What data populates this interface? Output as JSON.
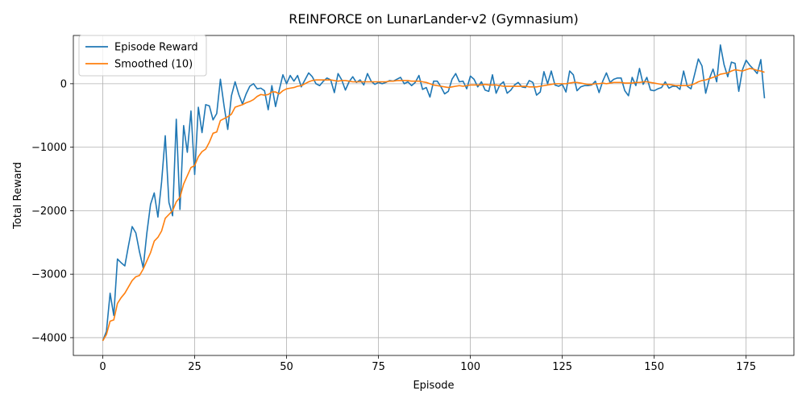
{
  "chart_data": {
    "type": "line",
    "title": "REINFORCE on LunarLander-v2 (Gymnasium)",
    "xlabel": "Episode",
    "ylabel": "Total Reward",
    "xlim": [
      -8,
      188
    ],
    "ylim": [
      -4280,
      760
    ],
    "xticks": [
      0,
      25,
      50,
      75,
      100,
      125,
      150,
      175
    ],
    "yticks": [
      -4000,
      -3000,
      -2000,
      -1000,
      0
    ],
    "ytick_labels": [
      "−4000",
      "−3000",
      "−2000",
      "−1000",
      "0"
    ],
    "grid": true,
    "legend": "upper-left",
    "series": [
      {
        "name": "Episode Reward",
        "color": "#1f77b4",
        "x_start": 0,
        "values": [
          -4050,
          -3900,
          -3300,
          -3650,
          -2760,
          -2820,
          -2870,
          -2550,
          -2250,
          -2350,
          -2650,
          -2900,
          -2350,
          -1900,
          -1720,
          -2100,
          -1550,
          -820,
          -1870,
          -2080,
          -560,
          -1980,
          -660,
          -1080,
          -430,
          -1430,
          -370,
          -770,
          -330,
          -350,
          -570,
          -470,
          70,
          -350,
          -720,
          -190,
          30,
          -170,
          -320,
          -160,
          -40,
          0,
          -80,
          -70,
          -110,
          -410,
          -30,
          -360,
          -100,
          140,
          0,
          130,
          40,
          130,
          -50,
          60,
          170,
          110,
          0,
          -30,
          40,
          90,
          60,
          -140,
          160,
          60,
          -100,
          30,
          110,
          20,
          60,
          -20,
          160,
          40,
          -10,
          20,
          0,
          20,
          50,
          40,
          70,
          100,
          0,
          30,
          -30,
          20,
          130,
          -90,
          -60,
          -210,
          40,
          40,
          -50,
          -160,
          -120,
          70,
          160,
          30,
          40,
          -80,
          120,
          70,
          -50,
          30,
          -100,
          -120,
          140,
          -150,
          -20,
          30,
          -150,
          -100,
          -20,
          20,
          -50,
          -60,
          50,
          20,
          -180,
          -130,
          190,
          0,
          200,
          -20,
          -40,
          -10,
          -130,
          200,
          140,
          -110,
          -50,
          -30,
          -30,
          -20,
          40,
          -140,
          40,
          170,
          20,
          70,
          90,
          90,
          -110,
          -190,
          100,
          -30,
          240,
          -10,
          100,
          -100,
          -110,
          -80,
          -60,
          30,
          -70,
          -40,
          -40,
          -90,
          200,
          -40,
          -80,
          150,
          390,
          280,
          -150,
          80,
          230,
          30,
          610,
          300,
          110,
          340,
          320,
          -120,
          220,
          370,
          290,
          230,
          160,
          380,
          -230
        ]
      },
      {
        "name": "Smoothed (10)",
        "color": "#ff7f0e",
        "x_start": 0,
        "values": [
          -4050,
          -3950,
          -3740,
          -3720,
          -3460,
          -3370,
          -3300,
          -3200,
          -3100,
          -3040,
          -3020,
          -2920,
          -2790,
          -2660,
          -2480,
          -2420,
          -2320,
          -2120,
          -2060,
          -2000,
          -1860,
          -1790,
          -1580,
          -1450,
          -1320,
          -1290,
          -1150,
          -1070,
          -1030,
          -920,
          -780,
          -760,
          -580,
          -550,
          -520,
          -480,
          -370,
          -350,
          -330,
          -300,
          -280,
          -250,
          -200,
          -170,
          -180,
          -170,
          -130,
          -130,
          -160,
          -110,
          -80,
          -70,
          -60,
          -40,
          -30,
          0,
          30,
          50,
          60,
          60,
          60,
          60,
          60,
          50,
          40,
          50,
          50,
          40,
          30,
          30,
          30,
          30,
          30,
          30,
          30,
          30,
          30,
          30,
          40,
          40,
          50,
          50,
          50,
          50,
          40,
          40,
          40,
          30,
          20,
          0,
          -20,
          -30,
          -40,
          -50,
          -60,
          -50,
          -40,
          -30,
          -40,
          -30,
          -20,
          -20,
          -20,
          -20,
          -10,
          -20,
          -20,
          -20,
          -30,
          -40,
          -40,
          -40,
          -40,
          -40,
          -40,
          -40,
          -50,
          -50,
          -50,
          -40,
          -30,
          -20,
          -10,
          0,
          0,
          0,
          0,
          10,
          20,
          20,
          10,
          0,
          -10,
          -10,
          0,
          0,
          10,
          0,
          10,
          20,
          20,
          20,
          10,
          10,
          10,
          20,
          20,
          30,
          30,
          20,
          10,
          0,
          -10,
          -10,
          -10,
          -20,
          -30,
          -30,
          -30,
          -30,
          -20,
          0,
          30,
          50,
          60,
          80,
          100,
          120,
          150,
          160,
          170,
          200,
          220,
          210,
          200,
          220,
          240,
          230,
          210,
          200,
          180
        ]
      }
    ]
  }
}
